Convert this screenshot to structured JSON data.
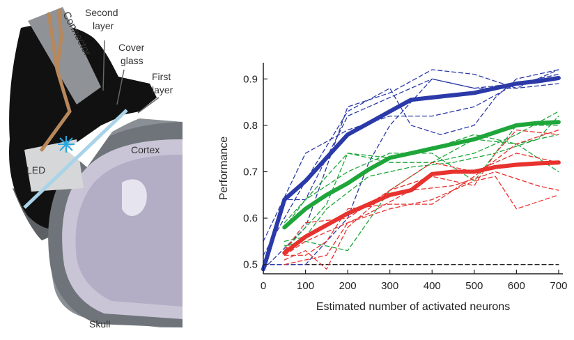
{
  "schematic": {
    "labels": {
      "connector": "Connector",
      "second_layer_1": "Second",
      "second_layer_2": "layer",
      "cover_glass_1": "Cover",
      "cover_glass_2": "glass",
      "first_layer_1": "First",
      "first_layer_2": "layer",
      "cortex": "Cortex",
      "led": "LED",
      "skull": "Skull"
    }
  },
  "chart_data": {
    "type": "line",
    "xlabel": "Estimated number of activated neurons",
    "ylabel": "Performance",
    "xlim": [
      0,
      710
    ],
    "ylim": [
      0.48,
      0.935
    ],
    "x_ticks": [
      0,
      100,
      200,
      300,
      400,
      500,
      600,
      700
    ],
    "y_ticks": [
      0.5,
      0.6,
      0.7,
      0.8,
      0.9
    ],
    "colors": {
      "blue": "#2b3aa8",
      "green": "#1ea63a",
      "red": "#e8322e",
      "chance": "#222222"
    },
    "series": [
      {
        "color": "blue",
        "style": "thick",
        "x": [
          0,
          50,
          100,
          150,
          200,
          250,
          300,
          350,
          400,
          450,
          500,
          550,
          600,
          650,
          700
        ],
        "y": [
          0.49,
          0.64,
          0.68,
          0.73,
          0.78,
          0.805,
          0.83,
          0.855,
          0.86,
          0.865,
          0.87,
          0.88,
          0.89,
          0.895,
          0.902
        ]
      },
      {
        "color": "green",
        "style": "thick",
        "x": [
          50,
          100,
          150,
          200,
          250,
          300,
          350,
          400,
          450,
          500,
          550,
          600,
          650,
          700
        ],
        "y": [
          0.58,
          0.62,
          0.65,
          0.675,
          0.705,
          0.73,
          0.74,
          0.75,
          0.76,
          0.77,
          0.785,
          0.8,
          0.805,
          0.807
        ]
      },
      {
        "color": "red",
        "style": "thick",
        "x": [
          50,
          100,
          150,
          200,
          250,
          300,
          350,
          400,
          450,
          500,
          550,
          600,
          650,
          700
        ],
        "y": [
          0.525,
          0.56,
          0.585,
          0.61,
          0.63,
          0.65,
          0.66,
          0.695,
          0.7,
          0.7,
          0.71,
          0.715,
          0.718,
          0.72
        ]
      },
      {
        "color": "chance",
        "style": "dashed",
        "x": [
          0,
          700
        ],
        "y": [
          0.5,
          0.5
        ]
      },
      {
        "color": "blue",
        "style": "dashed",
        "x": [
          0,
          100,
          200,
          300,
          400,
          500,
          600,
          700
        ],
        "y": [
          0.49,
          0.58,
          0.84,
          0.87,
          0.92,
          0.91,
          0.88,
          0.92
        ]
      },
      {
        "color": "blue",
        "style": "dashed",
        "x": [
          0,
          100,
          200,
          300,
          400,
          500,
          600,
          700
        ],
        "y": [
          0.55,
          0.74,
          0.79,
          0.82,
          0.82,
          0.84,
          0.89,
          0.91
        ]
      },
      {
        "color": "blue",
        "style": "dashed",
        "x": [
          0,
          100,
          200,
          300,
          350,
          420,
          500,
          550,
          600,
          700
        ],
        "y": [
          0.52,
          0.68,
          0.83,
          0.88,
          0.8,
          0.78,
          0.8,
          0.86,
          0.9,
          0.92
        ]
      },
      {
        "color": "blue",
        "style": "dashed",
        "x": [
          0,
          50,
          100,
          200,
          300,
          400,
          500,
          600,
          700
        ],
        "y": [
          0.49,
          0.64,
          0.64,
          0.82,
          0.86,
          0.9,
          0.88,
          0.88,
          0.89
        ]
      },
      {
        "color": "blue",
        "style": "dashed",
        "x": [
          0,
          100,
          150,
          200,
          250,
          300,
          400,
          500,
          600,
          700
        ],
        "y": [
          0.5,
          0.5,
          0.55,
          0.6,
          0.72,
          0.8,
          0.9,
          0.88,
          0.89,
          0.9
        ]
      },
      {
        "color": "green",
        "style": "dashed",
        "x": [
          50,
          100,
          200,
          300,
          400,
          500,
          600,
          700
        ],
        "y": [
          0.58,
          0.64,
          0.74,
          0.73,
          0.75,
          0.78,
          0.76,
          0.7
        ]
      },
      {
        "color": "green",
        "style": "dashed",
        "x": [
          50,
          100,
          200,
          300,
          400,
          500,
          600,
          700
        ],
        "y": [
          0.54,
          0.55,
          0.53,
          0.66,
          0.72,
          0.74,
          0.78,
          0.83
        ]
      },
      {
        "color": "green",
        "style": "dashed",
        "x": [
          50,
          100,
          200,
          300,
          400,
          500,
          600,
          700
        ],
        "y": [
          0.59,
          0.64,
          0.7,
          0.74,
          0.74,
          0.68,
          0.8,
          0.8
        ]
      },
      {
        "color": "green",
        "style": "dashed",
        "x": [
          50,
          150,
          200,
          300,
          400,
          500,
          600,
          700
        ],
        "y": [
          0.53,
          0.63,
          0.74,
          0.72,
          0.72,
          0.77,
          0.76,
          0.78
        ]
      },
      {
        "color": "green",
        "style": "dashed",
        "x": [
          50,
          100,
          150,
          250,
          350,
          450,
          550,
          650,
          700
        ],
        "y": [
          0.55,
          0.56,
          0.62,
          0.69,
          0.71,
          0.72,
          0.74,
          0.77,
          0.82
        ]
      },
      {
        "color": "red",
        "style": "dashed",
        "x": [
          50,
          100,
          150,
          200,
          300,
          400,
          500,
          600,
          700
        ],
        "y": [
          0.51,
          0.53,
          0.49,
          0.58,
          0.66,
          0.72,
          0.7,
          0.74,
          0.72
        ]
      },
      {
        "color": "red",
        "style": "dashed",
        "x": [
          50,
          100,
          200,
          300,
          400,
          500,
          550,
          600,
          700
        ],
        "y": [
          0.53,
          0.59,
          0.6,
          0.66,
          0.69,
          0.67,
          0.74,
          0.79,
          0.78
        ]
      },
      {
        "color": "red",
        "style": "dashed",
        "x": [
          50,
          100,
          150,
          200,
          300,
          400,
          500,
          600,
          700
        ],
        "y": [
          0.52,
          0.52,
          0.55,
          0.62,
          0.63,
          0.63,
          0.69,
          0.76,
          0.79
        ]
      },
      {
        "color": "red",
        "style": "dashed",
        "x": [
          50,
          150,
          200,
          300,
          400,
          500,
          550,
          600,
          700
        ],
        "y": [
          0.5,
          0.52,
          0.59,
          0.62,
          0.64,
          0.68,
          0.69,
          0.62,
          0.65
        ]
      },
      {
        "color": "red",
        "style": "dashed",
        "x": [
          50,
          100,
          150,
          250,
          350,
          450,
          550,
          650,
          700
        ],
        "y": [
          0.52,
          0.55,
          0.57,
          0.61,
          0.66,
          0.67,
          0.7,
          0.67,
          0.66
        ]
      }
    ]
  }
}
